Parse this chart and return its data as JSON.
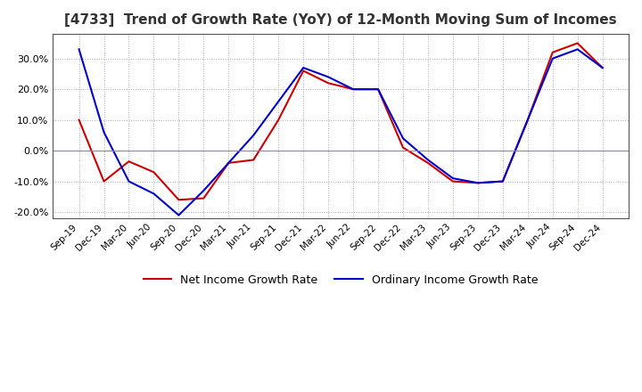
{
  "title": "[4733]  Trend of Growth Rate (YoY) of 12-Month Moving Sum of Incomes",
  "title_fontsize": 11,
  "ylim": [
    -22,
    38
  ],
  "yticks": [
    -20.0,
    -10.0,
    0.0,
    10.0,
    20.0,
    30.0
  ],
  "background_color": "#ffffff",
  "grid_color": "#aaaacc",
  "legend_labels": [
    "Ordinary Income Growth Rate",
    "Net Income Growth Rate"
  ],
  "line_colors": [
    "#0000cc",
    "#cc0000"
  ],
  "x_labels": [
    "Sep-19",
    "Dec-19",
    "Mar-20",
    "Jun-20",
    "Sep-20",
    "Dec-20",
    "Mar-21",
    "Jun-21",
    "Sep-21",
    "Dec-21",
    "Mar-22",
    "Jun-22",
    "Sep-22",
    "Dec-22",
    "Mar-23",
    "Jun-23",
    "Sep-23",
    "Dec-23",
    "Mar-24",
    "Jun-24",
    "Sep-24",
    "Dec-24"
  ],
  "ordinary_income": [
    33.0,
    6.0,
    -10.0,
    -14.0,
    -21.0,
    -13.0,
    -4.0,
    5.0,
    16.0,
    27.0,
    24.0,
    20.0,
    20.0,
    4.0,
    -3.0,
    -9.0,
    -10.5,
    -10.0,
    10.0,
    30.0,
    33.0,
    27.0
  ],
  "net_income": [
    10.0,
    -10.0,
    -3.5,
    -7.0,
    -16.0,
    -15.5,
    -4.0,
    -3.0,
    10.0,
    26.0,
    22.0,
    20.0,
    20.0,
    1.0,
    -4.0,
    -10.0,
    -10.5,
    -10.0,
    10.0,
    32.0,
    35.0,
    27.0
  ]
}
